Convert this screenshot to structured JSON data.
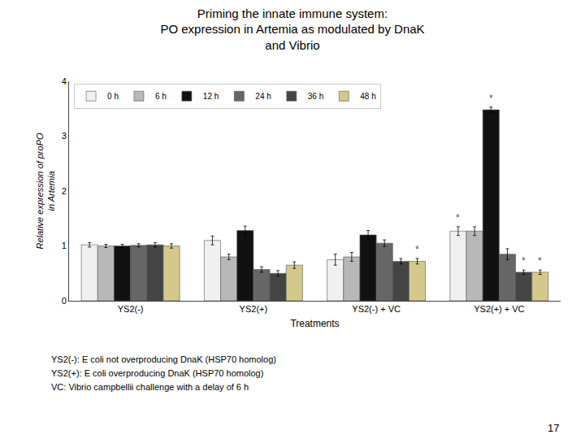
{
  "chart_data": {
    "type": "bar",
    "title": "Priming the innate immune system:\nPO expression in Artemia as modulated by DnaK\nand Vibrio",
    "xlabel": "Treatments",
    "ylabel": "Relative expression of proPO\nin Artemia",
    "categories": [
      "YS2(-)",
      "YS2(+)",
      "YS2(-) + VC",
      "YS2(+) + VC"
    ],
    "series": [
      {
        "name": "0 h",
        "color": "#f0f0f0",
        "values": [
          1.02,
          1.1,
          0.75,
          1.27
        ],
        "errors": [
          0.04,
          0.08,
          0.1,
          0.08
        ]
      },
      {
        "name": "6 h",
        "color": "#b8b8b8",
        "values": [
          1.0,
          0.8,
          0.8,
          1.27
        ],
        "errors": [
          0.03,
          0.05,
          0.08,
          0.08
        ]
      },
      {
        "name": "12 h",
        "color": "#111111",
        "values": [
          1.0,
          1.28,
          1.2,
          3.48
        ],
        "errors": [
          0.03,
          0.08,
          0.08,
          0.05
        ]
      },
      {
        "name": "24 h",
        "color": "#666666",
        "values": [
          1.01,
          0.57,
          1.05,
          0.85
        ],
        "errors": [
          0.03,
          0.05,
          0.06,
          0.1
        ]
      },
      {
        "name": "36 h",
        "color": "#444444",
        "values": [
          1.02,
          0.5,
          0.72,
          0.52
        ],
        "errors": [
          0.04,
          0.05,
          0.05,
          0.04
        ]
      },
      {
        "name": "48 h",
        "color": "#d4c98a",
        "values": [
          1.0,
          0.65,
          0.72,
          0.52
        ],
        "errors": [
          0.04,
          0.06,
          0.05,
          0.04
        ]
      }
    ],
    "annotations": [
      {
        "text": "*",
        "category": "YS2(+) + VC",
        "series": "12 h"
      },
      {
        "text": "*",
        "category": "YS2(+) + VC",
        "series": "0 h"
      },
      {
        "text": "*",
        "category": "YS2(-) + VC",
        "series": "48 h"
      },
      {
        "text": "*",
        "category": "YS2(+) + VC",
        "series": "36 h"
      },
      {
        "text": "*",
        "category": "YS2(+) + VC",
        "series": "48 h"
      }
    ],
    "footnotes": [
      "YS2(-): E coli not overproducing DnaK (HSP70 homolog)",
      "YS2(+): E coli overproducing DnaK (HSP70 homolog)",
      "VC: Vibrio campbellii challenge with a delay of 6 h"
    ],
    "page_number": "17",
    "ylim": [
      0,
      4.0
    ],
    "yticks": [
      0,
      1,
      2,
      3,
      4
    ],
    "grid": false,
    "legend": "upper left"
  }
}
